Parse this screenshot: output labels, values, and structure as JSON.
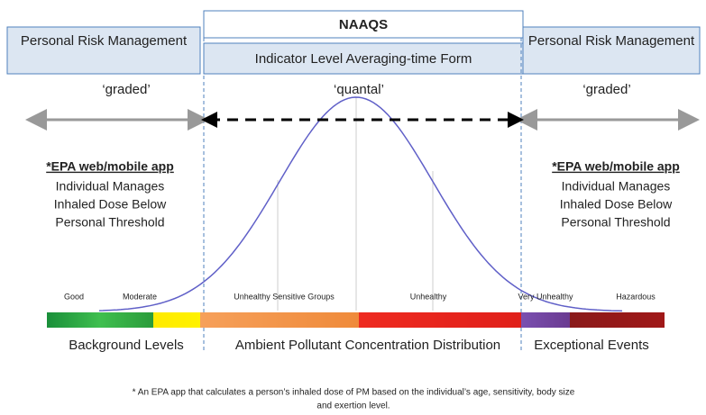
{
  "naaqs": {
    "title": "NAAQS",
    "subtitle": "Indicator Level Averaging-time Form"
  },
  "left_box": {
    "title": "Personal Risk Management"
  },
  "right_box": {
    "title": "Personal Risk Management"
  },
  "zones": {
    "left": "‘graded’",
    "center": "‘quantal’",
    "right": "‘graded’"
  },
  "left_note": {
    "heading": "*EPA web/mobile app",
    "lines": [
      "Individual Manages",
      "Inhaled Dose Below",
      "Personal Threshold"
    ]
  },
  "right_note": {
    "heading": "*EPA web/mobile app",
    "lines": [
      "Individual Manages",
      "Inhaled Dose Below",
      "Personal Threshold"
    ]
  },
  "aqi_labels": [
    "Good",
    "Moderate",
    "Unhealthy Sensitive Groups",
    "Unhealthy",
    "Very Unhealthy",
    "Hazardous"
  ],
  "regions": [
    "Background Levels",
    "Ambient Pollutant Concentration Distribution",
    "Exceptional Events"
  ],
  "footnote": [
    "* An EPA app that calculates a person’s inhaled dose of PM based on the individual’s age, sensitivity, body size",
    "and exertion level."
  ]
}
